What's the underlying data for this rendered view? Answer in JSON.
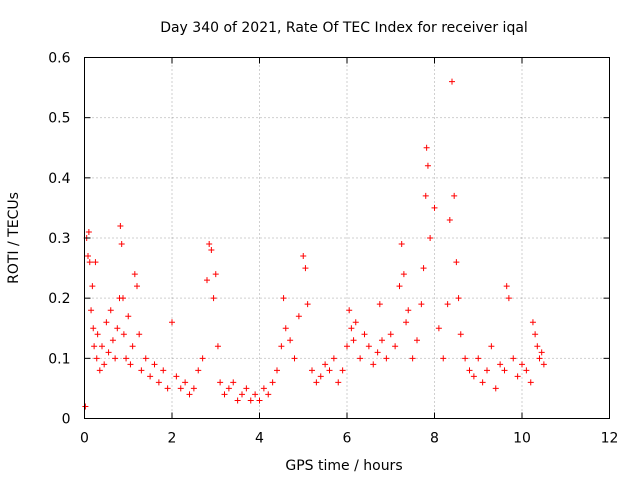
{
  "chart_data": {
    "type": "scatter",
    "title": "Day 340 of 2021, Rate Of TEC Index for receiver iqal",
    "xlabel": "GPS time / hours",
    "ylabel": "ROTI / TECUs",
    "xlim": [
      0,
      12
    ],
    "ylim": [
      0,
      0.6
    ],
    "x_ticks": [
      "0",
      "2",
      "4",
      "6",
      "8",
      "10",
      "12"
    ],
    "y_ticks": [
      "0",
      "0.1",
      "0.2",
      "0.3",
      "0.4",
      "0.5",
      "0.6"
    ],
    "grid": true,
    "marker": "+",
    "series": [
      {
        "color": "#ff0000",
        "x": [
          0.02,
          0.05,
          0.08,
          0.1,
          0.12,
          0.15,
          0.18,
          0.2,
          0.22,
          0.25,
          0.28,
          0.3,
          0.35,
          0.4,
          0.45,
          0.5,
          0.55,
          0.6,
          0.65,
          0.7,
          0.75,
          0.8,
          0.82,
          0.85,
          0.88,
          0.9,
          0.95,
          1.0,
          1.05,
          1.1,
          1.15,
          1.2,
          1.25,
          1.3,
          1.4,
          1.5,
          1.6,
          1.7,
          1.8,
          1.9,
          2.0,
          2.1,
          2.2,
          2.3,
          2.4,
          2.5,
          2.6,
          2.7,
          2.8,
          2.85,
          2.9,
          2.95,
          3.0,
          3.05,
          3.1,
          3.2,
          3.3,
          3.4,
          3.5,
          3.6,
          3.7,
          3.8,
          3.9,
          4.0,
          4.1,
          4.2,
          4.3,
          4.4,
          4.5,
          4.55,
          4.6,
          4.7,
          4.8,
          4.9,
          5.0,
          5.05,
          5.1,
          5.2,
          5.3,
          5.4,
          5.5,
          5.6,
          5.7,
          5.8,
          5.9,
          6.0,
          6.05,
          6.1,
          6.15,
          6.2,
          6.3,
          6.4,
          6.5,
          6.6,
          6.7,
          6.75,
          6.8,
          6.9,
          7.0,
          7.1,
          7.2,
          7.25,
          7.3,
          7.35,
          7.4,
          7.5,
          7.6,
          7.7,
          7.75,
          7.8,
          7.82,
          7.85,
          7.9,
          8.0,
          8.1,
          8.2,
          8.3,
          8.35,
          8.4,
          8.45,
          8.5,
          8.55,
          8.6,
          8.7,
          8.8,
          8.9,
          9.0,
          9.1,
          9.2,
          9.3,
          9.4,
          9.5,
          9.6,
          9.65,
          9.7,
          9.8,
          9.9,
          10.0,
          10.1,
          10.2,
          10.25,
          10.3,
          10.35,
          10.4,
          10.45,
          10.5
        ],
        "y": [
          0.02,
          0.3,
          0.27,
          0.31,
          0.26,
          0.18,
          0.22,
          0.15,
          0.12,
          0.26,
          0.1,
          0.14,
          0.08,
          0.12,
          0.09,
          0.16,
          0.11,
          0.18,
          0.13,
          0.1,
          0.15,
          0.2,
          0.32,
          0.29,
          0.2,
          0.14,
          0.1,
          0.17,
          0.09,
          0.12,
          0.24,
          0.22,
          0.14,
          0.08,
          0.1,
          0.07,
          0.09,
          0.06,
          0.08,
          0.05,
          0.16,
          0.07,
          0.05,
          0.06,
          0.04,
          0.05,
          0.08,
          0.1,
          0.23,
          0.29,
          0.28,
          0.2,
          0.24,
          0.12,
          0.06,
          0.04,
          0.05,
          0.06,
          0.03,
          0.04,
          0.05,
          0.03,
          0.04,
          0.03,
          0.05,
          0.04,
          0.06,
          0.08,
          0.12,
          0.2,
          0.15,
          0.13,
          0.1,
          0.17,
          0.27,
          0.25,
          0.19,
          0.08,
          0.06,
          0.07,
          0.09,
          0.08,
          0.1,
          0.06,
          0.08,
          0.12,
          0.18,
          0.15,
          0.13,
          0.16,
          0.1,
          0.14,
          0.12,
          0.09,
          0.11,
          0.19,
          0.13,
          0.1,
          0.14,
          0.12,
          0.22,
          0.29,
          0.24,
          0.16,
          0.18,
          0.1,
          0.13,
          0.19,
          0.25,
          0.37,
          0.45,
          0.42,
          0.3,
          0.35,
          0.15,
          0.1,
          0.19,
          0.33,
          0.56,
          0.37,
          0.26,
          0.2,
          0.14,
          0.1,
          0.08,
          0.07,
          0.1,
          0.06,
          0.08,
          0.12,
          0.05,
          0.09,
          0.08,
          0.22,
          0.2,
          0.1,
          0.07,
          0.09,
          0.08,
          0.06,
          0.16,
          0.14,
          0.12,
          0.1,
          0.11,
          0.09
        ]
      }
    ]
  }
}
